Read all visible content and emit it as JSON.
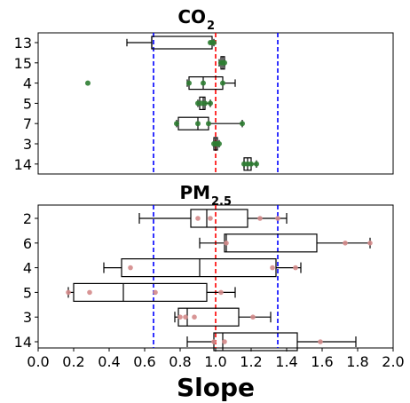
{
  "chart_data": [
    {
      "type": "box",
      "title": "CO",
      "title_subscript": "2",
      "xlim": [
        0,
        2
      ],
      "vlines": [
        {
          "x": 0.65,
          "color": "#0000ff",
          "style": "dashed"
        },
        {
          "x": 1.0,
          "color": "#ff0000",
          "style": "dashed"
        },
        {
          "x": 1.35,
          "color": "#0000ff",
          "style": "dashed"
        }
      ],
      "point_color": "#2e7d32",
      "categories": [
        "13",
        "15",
        "4",
        "5",
        "7",
        "3",
        "14"
      ],
      "boxes": [
        {
          "label": "13",
          "min": 0.5,
          "q1": 0.64,
          "median": 0.64,
          "q3": 0.98,
          "max": 0.99,
          "points": [
            0.97,
            0.98,
            0.99,
            0.98
          ]
        },
        {
          "label": "15",
          "min": 1.02,
          "q1": 1.03,
          "median": 1.04,
          "q3": 1.05,
          "max": 1.05,
          "points": [
            1.03,
            1.04,
            1.05,
            1.04
          ]
        },
        {
          "label": "4",
          "min": 0.84,
          "q1": 0.85,
          "median": 0.93,
          "q3": 1.04,
          "max": 1.11,
          "points": [
            0.28,
            0.85,
            0.93,
            1.04
          ]
        },
        {
          "label": "5",
          "min": 0.9,
          "q1": 0.91,
          "median": 0.93,
          "q3": 0.94,
          "max": 0.97,
          "points": [
            0.9,
            0.92,
            0.94,
            0.97
          ]
        },
        {
          "label": "7",
          "min": 0.78,
          "q1": 0.79,
          "median": 0.9,
          "q3": 0.96,
          "max": 1.15,
          "points": [
            0.78,
            0.9,
            0.96,
            1.15
          ]
        },
        {
          "label": "3",
          "min": 0.99,
          "q1": 0.99,
          "median": 1.0,
          "q3": 1.01,
          "max": 1.02,
          "points": [
            0.99,
            1.0,
            1.01,
            1.02
          ]
        },
        {
          "label": "14",
          "min": 1.16,
          "q1": 1.16,
          "median": 1.18,
          "q3": 1.2,
          "max": 1.23,
          "points": [
            1.16,
            1.18,
            1.2,
            1.23
          ]
        }
      ]
    },
    {
      "type": "box",
      "title": "PM",
      "title_subscript": "2.5",
      "xlim": [
        0,
        2
      ],
      "vlines": [
        {
          "x": 0.65,
          "color": "#0000ff",
          "style": "dashed"
        },
        {
          "x": 1.0,
          "color": "#ff0000",
          "style": "dashed"
        },
        {
          "x": 1.35,
          "color": "#0000ff",
          "style": "dashed"
        }
      ],
      "point_color": "#d48a8a",
      "categories": [
        "2",
        "6",
        "4",
        "5",
        "3",
        "14"
      ],
      "boxes": [
        {
          "label": "2",
          "min": 0.57,
          "q1": 0.86,
          "median": 0.95,
          "q3": 1.18,
          "max": 1.4,
          "points": [
            0.9,
            0.97,
            1.25,
            1.35
          ]
        },
        {
          "label": "6",
          "min": 0.91,
          "q1": 1.05,
          "median": 1.06,
          "q3": 1.57,
          "max": 1.87,
          "points": [
            1.06,
            1.73,
            1.87
          ]
        },
        {
          "label": "4",
          "min": 0.37,
          "q1": 0.47,
          "median": 0.91,
          "q3": 1.34,
          "max": 1.48,
          "points": [
            0.52,
            1.32,
            1.45
          ]
        },
        {
          "label": "5",
          "min": 0.17,
          "q1": 0.2,
          "median": 0.48,
          "q3": 0.95,
          "max": 1.11,
          "points": [
            0.17,
            0.29,
            0.66,
            1.03
          ]
        },
        {
          "label": "3",
          "min": 0.77,
          "q1": 0.79,
          "median": 0.84,
          "q3": 1.13,
          "max": 1.31,
          "points": [
            0.8,
            0.83,
            0.88,
            1.21
          ]
        },
        {
          "label": "14",
          "min": 0.84,
          "q1": 0.99,
          "median": 1.04,
          "q3": 1.46,
          "max": 1.79,
          "points": [
            0.99,
            1.05,
            1.59
          ]
        }
      ]
    }
  ],
  "x_axis": {
    "ticks": [
      "0.0",
      "0.2",
      "0.4",
      "0.6",
      "0.8",
      "1.0",
      "1.2",
      "1.4",
      "1.6",
      "1.8",
      "2.0"
    ],
    "label": "Slope"
  }
}
